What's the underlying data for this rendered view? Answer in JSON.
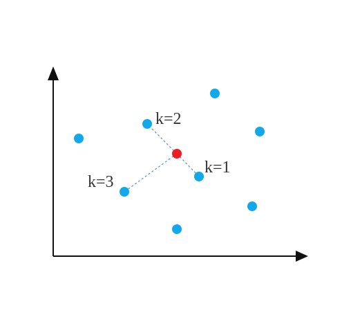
{
  "diagram": {
    "colors": {
      "axis": "#111111",
      "neighbor_point": "#13a8ea",
      "query_point": "#ee1c24",
      "neighbor_line": "#5b8fcf"
    },
    "labels": {
      "k1": "k=1",
      "k2": "k=2",
      "k3": "k=3"
    }
  }
}
